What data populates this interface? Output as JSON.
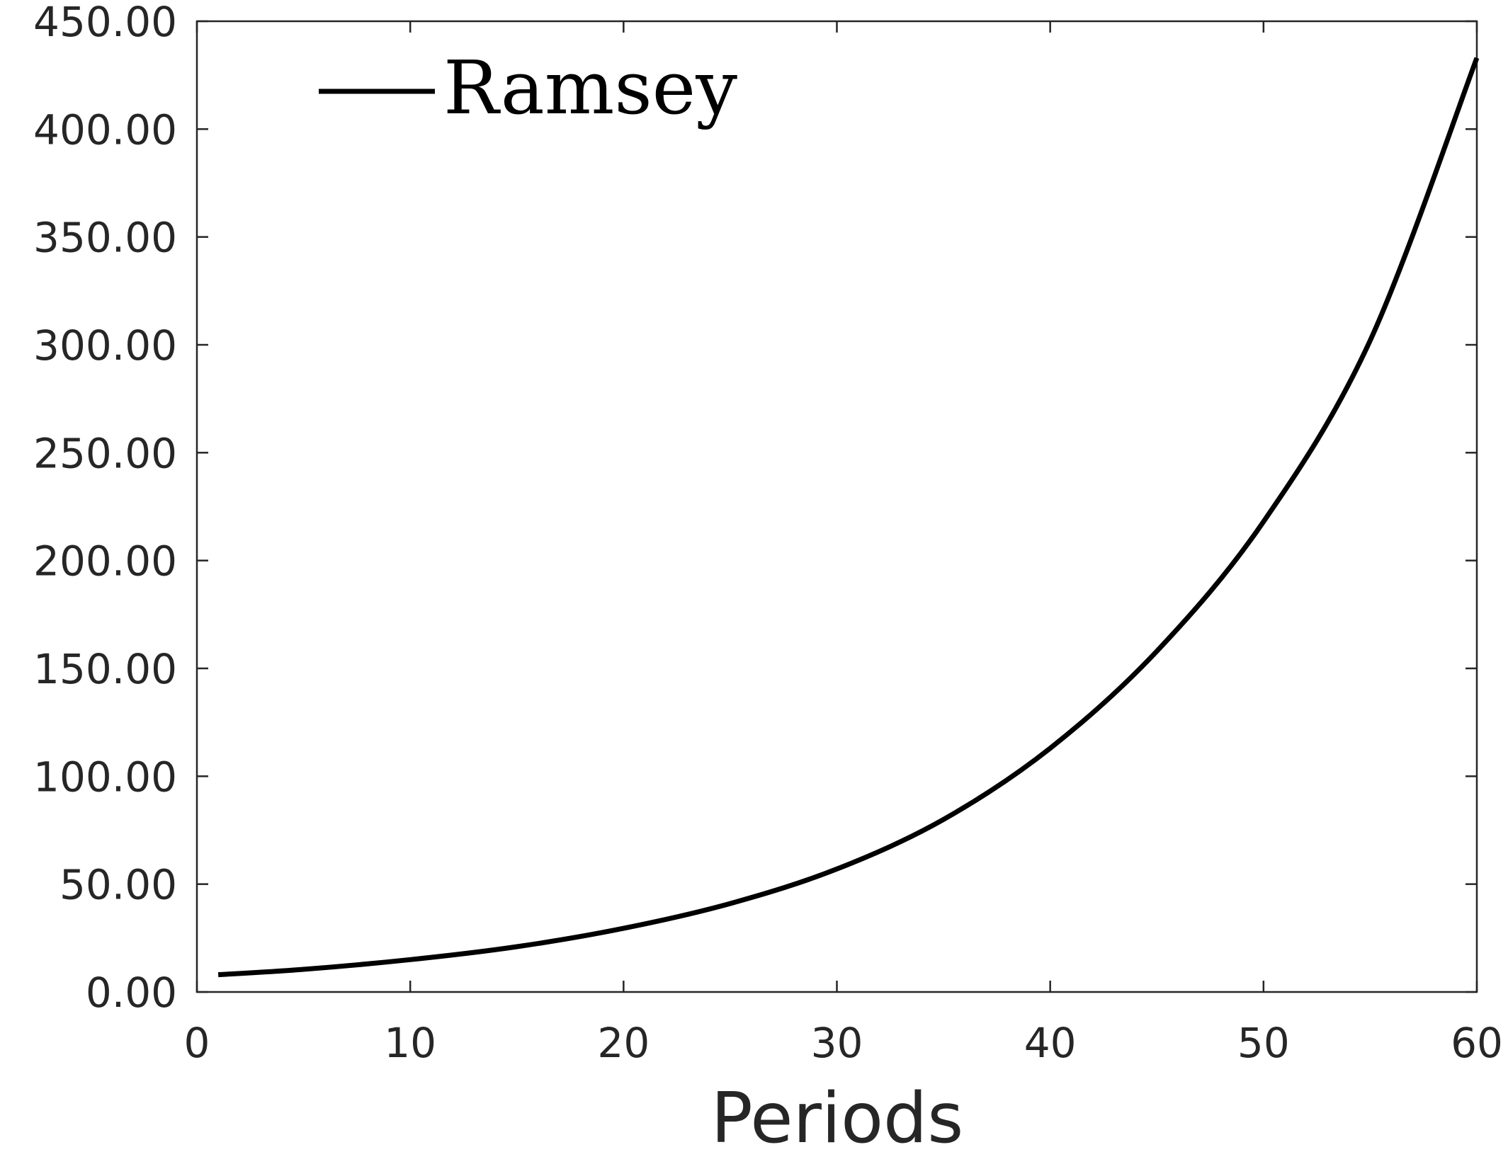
{
  "chart_data": {
    "type": "line",
    "title": "",
    "xlabel": "Periods",
    "ylabel": "",
    "xlim": [
      0,
      60
    ],
    "ylim": [
      0,
      450
    ],
    "x_ticks": [
      0,
      10,
      20,
      30,
      40,
      50,
      60
    ],
    "x_tick_labels": [
      "0",
      "10",
      "20",
      "30",
      "40",
      "50",
      "60"
    ],
    "y_ticks": [
      0,
      50,
      100,
      150,
      200,
      250,
      300,
      350,
      400,
      450
    ],
    "y_tick_labels": [
      "0.00",
      "50.00",
      "100.00",
      "150.00",
      "200.00",
      "250.00",
      "300.00",
      "350.00",
      "400.00",
      "450.00"
    ],
    "grid": false,
    "legend_position": "top-left",
    "series": [
      {
        "name": "Ramsey",
        "color": "#000000",
        "x": [
          1,
          5,
          10,
          15,
          20,
          25,
          30,
          35,
          40,
          45,
          50,
          55,
          60
        ],
        "y": [
          8.0,
          10.5,
          15.0,
          21.0,
          29.5,
          41.0,
          57.0,
          80.0,
          113.0,
          158.0,
          218.0,
          302.0,
          433.0
        ]
      }
    ]
  }
}
